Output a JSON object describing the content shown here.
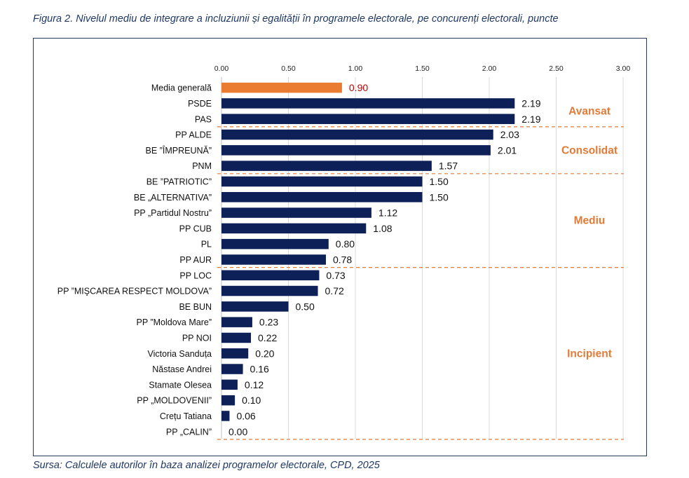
{
  "caption": "Figura 2. Nivelul mediu de integrare a incluziunii și egalității în programele electorale, pe concurenți electorali, puncte",
  "source": "Sursa: Calculele autorilor în baza analizei programelor electorale, CPD, 2025",
  "chart_data": {
    "type": "bar",
    "orientation": "horizontal",
    "xlim": [
      0,
      3
    ],
    "ticks": [
      0,
      0.5,
      1,
      1.5,
      2,
      2.5,
      3
    ],
    "tick_labels": [
      "0.00",
      "0.50",
      "1.00",
      "1.50",
      "2.00",
      "2.50",
      "3.00"
    ],
    "axis_position": "top",
    "grid": true,
    "bar_color": "#0d2158",
    "highlight_color": "#e97c30",
    "highlight_label_color": "#c00000",
    "group_label_color": "#e07b39",
    "separator_color": "#e07b39",
    "bars": [
      {
        "label": "Media generală",
        "value": 0.9,
        "display": "0.90",
        "highlight": true
      },
      {
        "label": "PSDE",
        "value": 2.19,
        "display": "2.19"
      },
      {
        "label": "PAS",
        "value": 2.19,
        "display": "2.19"
      },
      {
        "label": "PP ALDE",
        "value": 2.03,
        "display": "2.03"
      },
      {
        "label": "BE ”ÎMPREUNĂ”",
        "value": 2.01,
        "display": "2.01"
      },
      {
        "label": "PNM",
        "value": 1.57,
        "display": "1.57"
      },
      {
        "label": "BE ”PATRIOTIC”",
        "value": 1.5,
        "display": "1.50"
      },
      {
        "label": "BE „ALTERNATIVA”",
        "value": 1.5,
        "display": "1.50"
      },
      {
        "label": "PP „Partidul Nostru”",
        "value": 1.12,
        "display": "1.12"
      },
      {
        "label": "PP CUB",
        "value": 1.08,
        "display": "1.08"
      },
      {
        "label": "PL",
        "value": 0.8,
        "display": "0.80"
      },
      {
        "label": "PP AUR",
        "value": 0.78,
        "display": "0.78"
      },
      {
        "label": "PP LOC",
        "value": 0.73,
        "display": "0.73"
      },
      {
        "label": "PP ”MIŞCAREA RESPECT MOLDOVA”",
        "value": 0.72,
        "display": "0.72"
      },
      {
        "label": "BE BUN",
        "value": 0.5,
        "display": "0.50"
      },
      {
        "label": "PP ”Moldova Mare”",
        "value": 0.23,
        "display": "0.23"
      },
      {
        "label": "PP NOI",
        "value": 0.22,
        "display": "0.22"
      },
      {
        "label": "Victoria Sanduța",
        "value": 0.2,
        "display": "0.20"
      },
      {
        "label": "Năstase Andrei",
        "value": 0.16,
        "display": "0.16"
      },
      {
        "label": "Stamate Olesea",
        "value": 0.12,
        "display": "0.12"
      },
      {
        "label": "PP „MOLDOVENII”",
        "value": 0.1,
        "display": "0.10"
      },
      {
        "label": "Crețu Tatiana",
        "value": 0.06,
        "display": "0.06"
      },
      {
        "label": "PP „CALIN”",
        "value": 0.0,
        "display": "0.00"
      }
    ],
    "groups": [
      {
        "name": "Avansat",
        "first": 1,
        "last": 2
      },
      {
        "name": "Consolidat",
        "first": 3,
        "last": 5
      },
      {
        "name": "Mediu",
        "first": 6,
        "last": 11
      },
      {
        "name": "Incipient",
        "first": 12,
        "last": 22
      }
    ]
  }
}
